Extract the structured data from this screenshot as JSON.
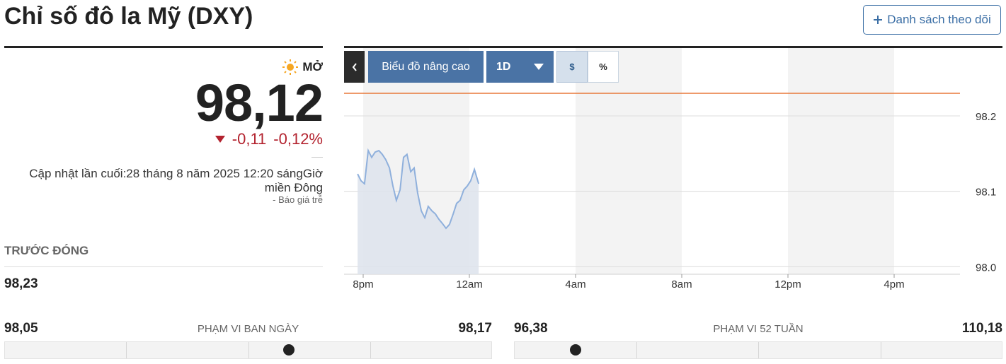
{
  "header": {
    "title": "Chỉ số đô la Mỹ (DXY)",
    "watchlist_button": "Danh sách theo dõi"
  },
  "quote": {
    "market_status": "MỞ",
    "price": {
      "value": 98.12,
      "label": "98,12"
    },
    "change": "-0,11",
    "change_percent": "-0,12%",
    "last_updated": "Cập nhật lần cuối:28 tháng 8 năm 2025 12:20 sángGiờ miền Đông",
    "delay_note": "-  Báo giá trễ",
    "previous_close_label": "TRƯỚC ĐÓNG",
    "previous_close": "98,23"
  },
  "toolbar": {
    "advanced_chart": "Biểu đồ nâng cao",
    "interval": "1D",
    "currency_toggle": "$",
    "percent_toggle": "%"
  },
  "chart_data": {
    "type": "line",
    "x": [
      19.79,
      19.92,
      20.05,
      20.19,
      20.32,
      20.45,
      20.59,
      20.72,
      20.85,
      20.99,
      21.12,
      21.25,
      21.39,
      21.52,
      21.65,
      21.79,
      21.92,
      22.05,
      22.19,
      22.32,
      22.45,
      22.59,
      22.72,
      22.85,
      22.99,
      23.12,
      23.25,
      23.39,
      23.52,
      23.65,
      23.79,
      23.92,
      24.05,
      24.19,
      24.35
    ],
    "series": [
      {
        "color": "#8fb0dc",
        "values": [
          98.123,
          98.114,
          98.11,
          98.154,
          98.145,
          98.152,
          98.154,
          98.149,
          98.142,
          98.131,
          98.107,
          98.088,
          98.102,
          98.145,
          98.149,
          98.126,
          98.131,
          98.098,
          98.074,
          98.065,
          98.08,
          98.074,
          98.07,
          98.063,
          98.057,
          98.051,
          98.056,
          98.07,
          98.084,
          98.088,
          98.102,
          98.107,
          98.114,
          98.129,
          98.11
        ]
      }
    ],
    "area_color": "#dde3ec",
    "reference_line": 98.23,
    "reference_color": "#e8793a",
    "xlim": [
      19.28,
      42.48
    ],
    "xticks": [
      {
        "value": 20,
        "label": "8pm"
      },
      {
        "value": 24,
        "label": "12am"
      },
      {
        "value": 28,
        "label": "4am"
      },
      {
        "value": 32,
        "label": "8am"
      },
      {
        "value": 36,
        "label": "12pm"
      },
      {
        "value": 40,
        "label": "4pm"
      }
    ],
    "ylim": [
      97.99,
      98.29
    ],
    "yticks": [
      {
        "value": 98,
        "label": "98.0"
      },
      98.1,
      98.2
    ],
    "grid": true
  },
  "ranges": [
    {
      "label": "PHẠM VI BAN NGÀY",
      "low": {
        "value": 98.05,
        "label": "98,05"
      },
      "high": {
        "value": 98.17,
        "label": "98,17"
      }
    },
    {
      "label": "PHẠM VI 52 TUẦN",
      "low": {
        "value": 96.38,
        "label": "96,38"
      },
      "high": {
        "value": 110.18,
        "label": "110,18"
      }
    }
  ]
}
